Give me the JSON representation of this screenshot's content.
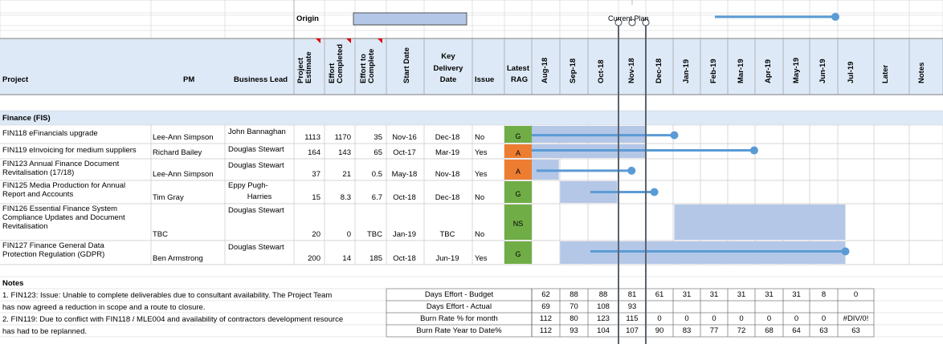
{
  "header": {
    "origin_label": "Origin",
    "current_plan_label": "Current Plan",
    "col_project": "Project",
    "col_pm": "PM",
    "col_business_lead": "Business Lead",
    "col_project_estimate": "Project Estimate",
    "col_effort_completed": "Effort Completed",
    "col_effort_to_complete": "Effort to Complete",
    "col_start_date": "Start Date",
    "col_key_delivery_1": "Key",
    "col_key_delivery_2": "Delivery",
    "col_key_delivery_3": "Date",
    "col_issue": "Issue",
    "col_latest_1": "Latest",
    "col_latest_2": "RAG",
    "months": [
      "Aug-18",
      "Sep-18",
      "Oct-18",
      "Nov-18",
      "Dec-18",
      "Jan-19",
      "Feb-19",
      "Mar-19",
      "Apr-19",
      "May-19",
      "Jun-19",
      "Jul-19"
    ],
    "col_later": "Later",
    "col_notes": "Notes"
  },
  "section_title": "Finance (FIS)",
  "rows": [
    {
      "project_1": "FIN118 eFinancials upgrade",
      "project_2": "",
      "pm": "Lee-Ann Simpson",
      "lead_1": "John Bannaghan",
      "lead_2": "",
      "estimate": "1113",
      "completed": "1170",
      "to_complete": "35",
      "start": "Nov-16",
      "delivery": "Dec-18",
      "issue": "No",
      "rag": "G",
      "rag_color": "#70ad47"
    },
    {
      "project_1": "FIN119 eInvoicing for medium suppliers",
      "project_2": "",
      "pm": "Richard Bailey",
      "lead_1": "Douglas Stewart",
      "lead_2": "",
      "estimate": "164",
      "completed": "143",
      "to_complete": "65",
      "start": "Oct-17",
      "delivery": "Mar-19",
      "issue": "Yes",
      "rag": "A",
      "rag_color": "#ed7d31"
    },
    {
      "project_1": "FIN123 Annual Finance Document",
      "project_2": "Revitalisation (17/18)",
      "pm": "Lee-Ann Simpson",
      "lead_1": "Douglas Stewart",
      "lead_2": "",
      "estimate": "37",
      "completed": "21",
      "to_complete": "0.5",
      "start": "May-18",
      "delivery": "Nov-18",
      "issue": "Yes",
      "rag": "A",
      "rag_color": "#ed7d31"
    },
    {
      "project_1": "FIN125 Media Production for Annual",
      "project_2": "Report and Accounts",
      "pm": "Tim Gray",
      "lead_1": "Eppy Pugh-",
      "lead_2": "Harries",
      "estimate": "15",
      "completed": "8.3",
      "to_complete": "6.7",
      "start": "Oct-18",
      "delivery": "Dec-18",
      "issue": "No",
      "rag": "G",
      "rag_color": "#70ad47"
    },
    {
      "project_1": "FIN126 Essential Finance System",
      "project_2": "Compliance Updates and Document",
      "project_3": "Revitalisation",
      "pm": "TBC",
      "lead_1": "Douglas Stewart",
      "lead_2": "",
      "estimate": "20",
      "completed": "0",
      "to_complete": "TBC",
      "start": "Jan-19",
      "delivery": "TBC",
      "issue": "No",
      "rag": "NS",
      "rag_color": "#70ad47"
    },
    {
      "project_1": "FIN127 Finance General Data",
      "project_2": "Protection Regulation (GDPR)",
      "pm": "Ben Armstrong",
      "lead_1": "Douglas Stewart",
      "lead_2": "",
      "estimate": "200",
      "completed": "14",
      "to_complete": "185",
      "start": "Oct-18",
      "delivery": "Jun-19",
      "issue": "Yes",
      "rag": "G",
      "rag_color": "#70ad47"
    }
  ],
  "notes": {
    "title": "Notes",
    "lines": [
      "1. FIN123: Issue: Unable to complete deliverables due to consultant availability. The Project Team",
      "has now agreed a reduction in scope and a route to closure.",
      "2. FIN119: Due to conflict with FIN118 / MLE004 and availability of contractors development resource",
      "has had to be replanned."
    ]
  },
  "summary": [
    {
      "label": "Days Effort - Budget",
      "values": [
        "62",
        "88",
        "88",
        "81",
        "61",
        "31",
        "31",
        "31",
        "31",
        "31",
        "8",
        "0"
      ]
    },
    {
      "label": "Days Effort - Actual",
      "values": [
        "69",
        "70",
        "108",
        "93",
        "",
        "",
        "",
        "",
        "",
        "",
        "",
        ""
      ]
    },
    {
      "label": "Burn Rate % for month",
      "values": [
        "112",
        "80",
        "123",
        "115",
        "0",
        "0",
        "0",
        "0",
        "0",
        "0",
        "0",
        "#DIV/0!"
      ]
    },
    {
      "label": "Burn Rate Year to Date%",
      "values": [
        "112",
        "93",
        "104",
        "107",
        "90",
        "83",
        "77",
        "72",
        "68",
        "64",
        "63",
        "63"
      ]
    }
  ],
  "colors": {
    "header_fill": "#dde9f6",
    "bar_fill": "#b4c7e7",
    "plan_line": "#5b9bd5",
    "grid": "#d0d0d0",
    "dark_line": "#000000"
  }
}
